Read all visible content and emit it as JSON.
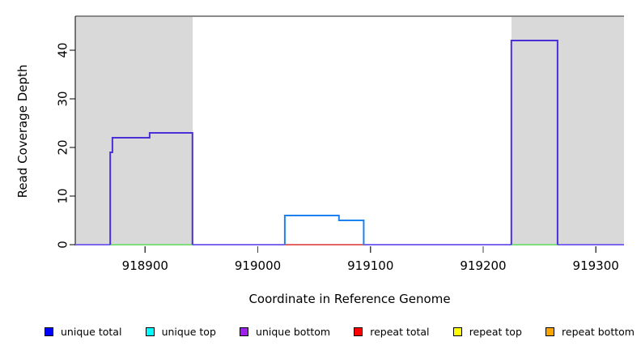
{
  "chart_data": {
    "type": "line",
    "subtype": "step-coverage-plot",
    "title": "",
    "xlabel": "Coordinate in Reference Genome",
    "ylabel": "Read Coverage Depth",
    "xlim": [
      918838,
      919325
    ],
    "ylim": [
      0,
      47
    ],
    "xticks": [
      918900,
      919000,
      919100,
      919200,
      919300
    ],
    "yticks": [
      0,
      10,
      20,
      30,
      40
    ],
    "grid": false,
    "legend_position": "bottom",
    "axis_color": "#000000",
    "tick_color": "#404040",
    "box_top_color": "#8a8a8a",
    "shaded_regions": [
      {
        "name": "left-repeat-region",
        "x0": 918838,
        "x1": 918942,
        "color": "#d9d9d9"
      },
      {
        "name": "right-repeat-region",
        "x0": 919225,
        "x1": 919325,
        "color": "#d9d9d9"
      }
    ],
    "series": [
      {
        "name": "zero-baseline (unique bottom)",
        "color": "#7b68ee",
        "width": 2,
        "points": [
          [
            918838,
            0
          ],
          [
            919325,
            0
          ]
        ]
      },
      {
        "name": "baseline-under-left-peak",
        "color": "#7fdc7f",
        "width": 2,
        "points": [
          [
            918869,
            0
          ],
          [
            918942,
            0
          ]
        ]
      },
      {
        "name": "baseline-under-mid-step (repeat total)",
        "color": "#e46464",
        "width": 2,
        "points": [
          [
            919024,
            0
          ],
          [
            919094,
            0
          ]
        ]
      },
      {
        "name": "baseline-under-right-peak",
        "color": "#7fdc7f",
        "width": 2,
        "points": [
          [
            919225,
            0
          ],
          [
            919266,
            0
          ]
        ]
      },
      {
        "name": "left coverage peak (unique total)",
        "color": "#4b2fd9",
        "width": 2,
        "points": [
          [
            918869,
            0
          ],
          [
            918869,
            19
          ],
          [
            918871,
            19
          ],
          [
            918871,
            22
          ],
          [
            918904,
            22
          ],
          [
            918904,
            23
          ],
          [
            918942,
            23
          ],
          [
            918942,
            0
          ]
        ]
      },
      {
        "name": "middle coverage step (unique top)",
        "color": "#1e82ee",
        "width": 2,
        "points": [
          [
            919024,
            0
          ],
          [
            919024,
            6
          ],
          [
            919072,
            6
          ],
          [
            919072,
            5
          ],
          [
            919094,
            5
          ],
          [
            919094,
            0
          ]
        ]
      },
      {
        "name": "right coverage peak (unique total)",
        "color": "#4b2fd9",
        "width": 2,
        "points": [
          [
            919225,
            0
          ],
          [
            919225,
            42
          ],
          [
            919266,
            42
          ],
          [
            919266,
            0
          ]
        ]
      }
    ],
    "legend": [
      {
        "label": "unique total",
        "color": "#0000ff"
      },
      {
        "label": "unique top",
        "color": "#00ffff"
      },
      {
        "label": "unique bottom",
        "color": "#a020f0"
      },
      {
        "label": "repeat total",
        "color": "#ff0000"
      },
      {
        "label": "repeat top",
        "color": "#ffff00"
      },
      {
        "label": "repeat bottom",
        "color": "#ffa500"
      }
    ]
  }
}
